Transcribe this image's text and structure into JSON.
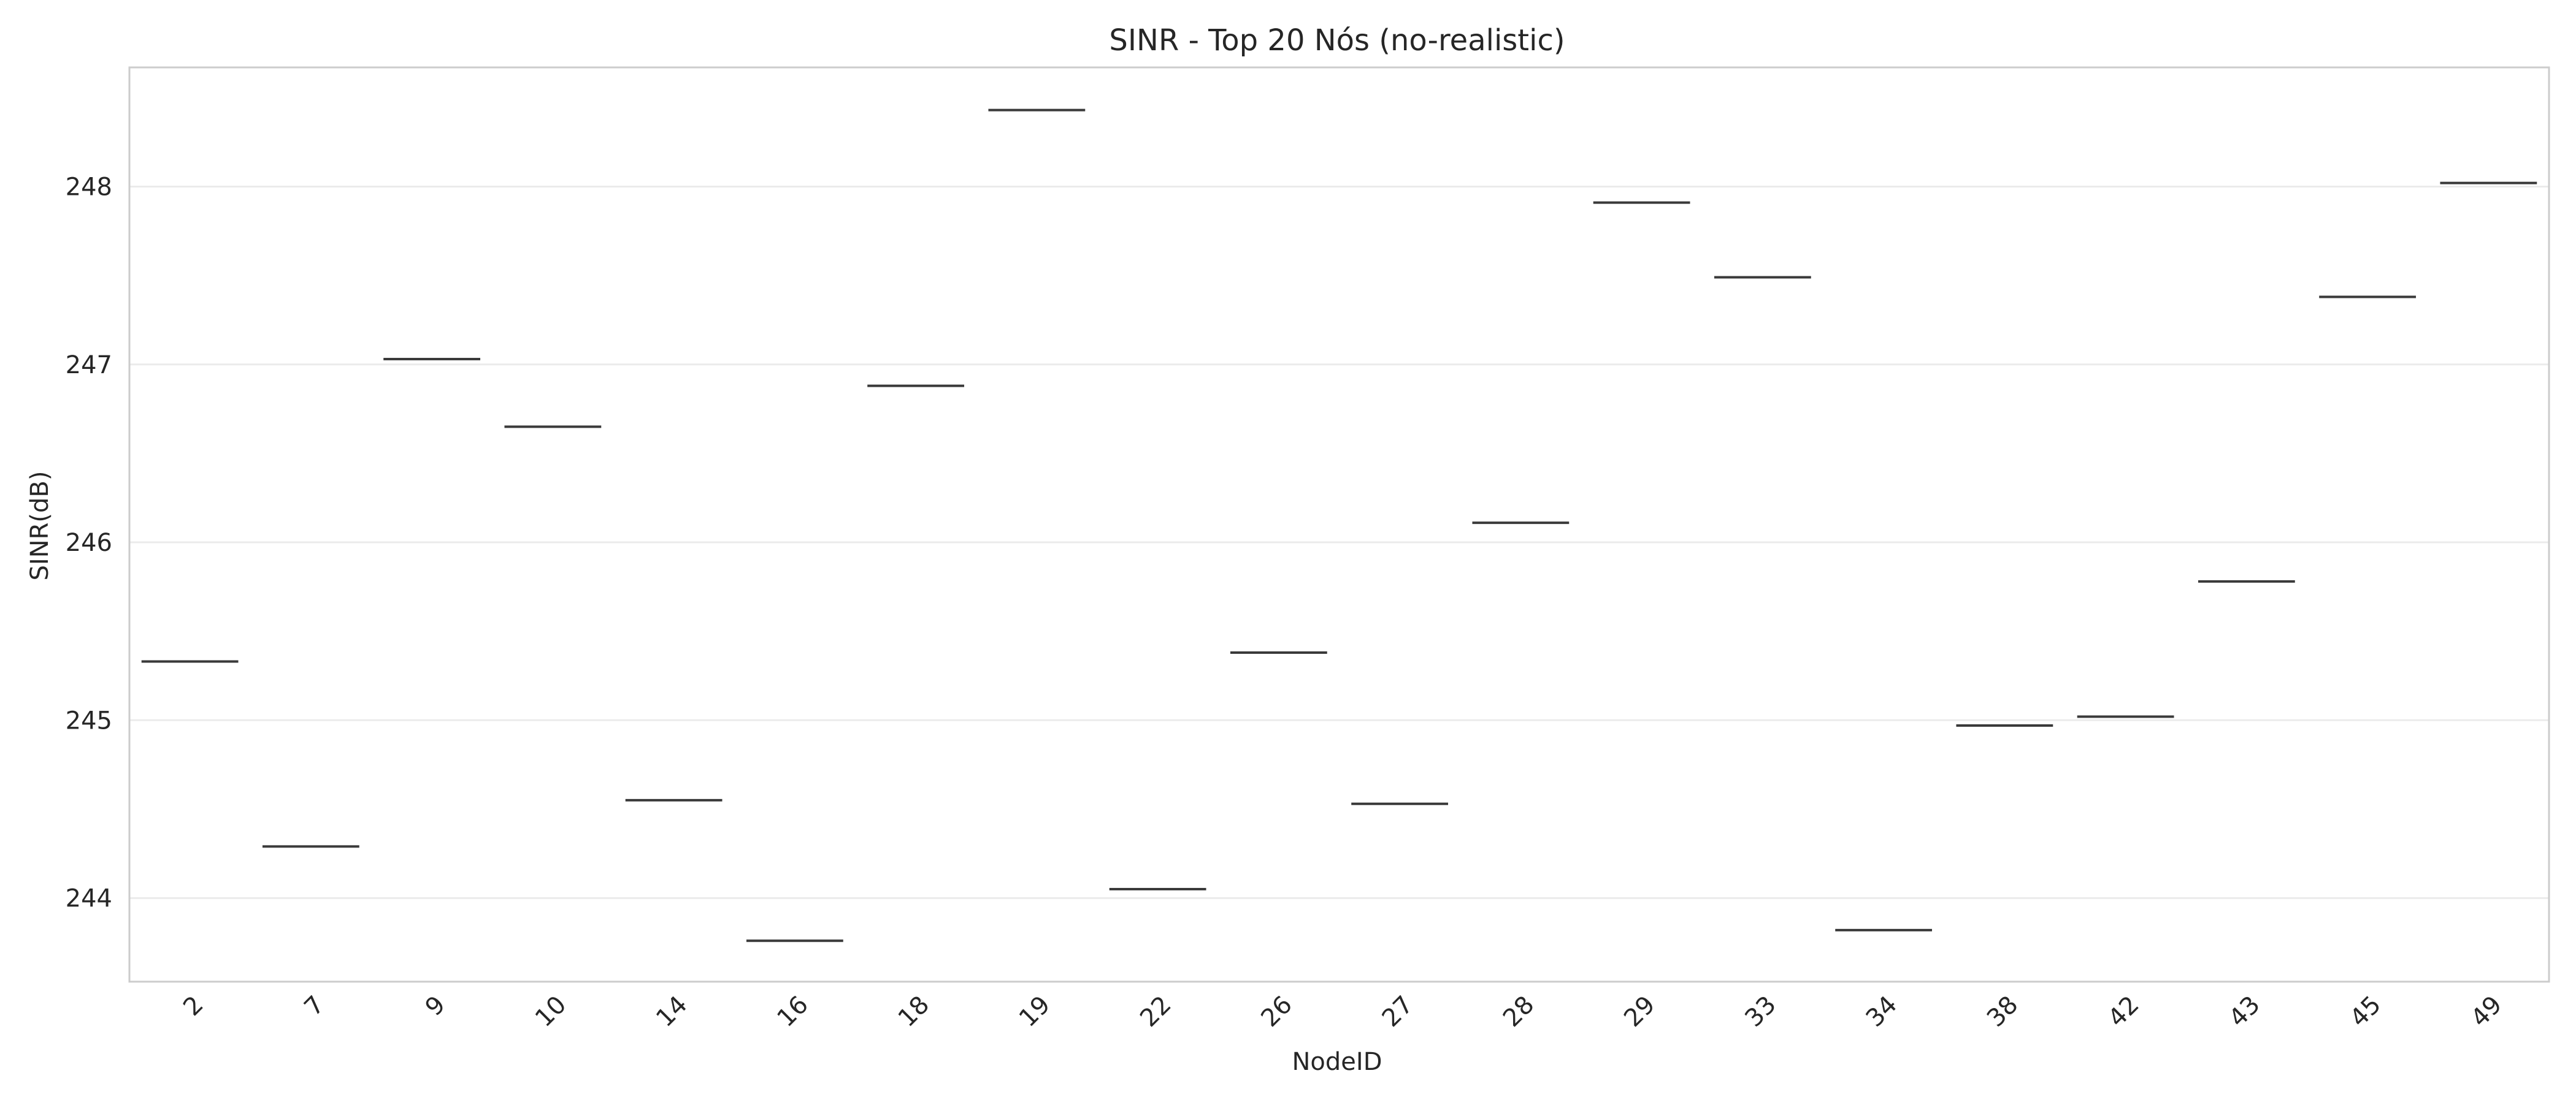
{
  "chart_data": {
    "type": "box",
    "title": "SINR - Top 20 Nós (no-realistic)",
    "xlabel": "NodeID",
    "ylabel": "SINR(dB)",
    "ylim": [
      243.53,
      248.67
    ],
    "yticks": [
      244,
      245,
      246,
      247,
      248
    ],
    "grid": true,
    "categories": [
      "2",
      "7",
      "9",
      "10",
      "14",
      "16",
      "18",
      "19",
      "22",
      "26",
      "27",
      "28",
      "29",
      "33",
      "34",
      "38",
      "42",
      "43",
      "45",
      "49"
    ],
    "values": [
      245.33,
      244.29,
      247.03,
      246.65,
      244.55,
      243.76,
      246.88,
      248.43,
      244.05,
      245.38,
      244.53,
      246.11,
      247.91,
      247.49,
      243.82,
      244.97,
      245.02,
      245.78,
      247.38,
      248.02
    ]
  }
}
